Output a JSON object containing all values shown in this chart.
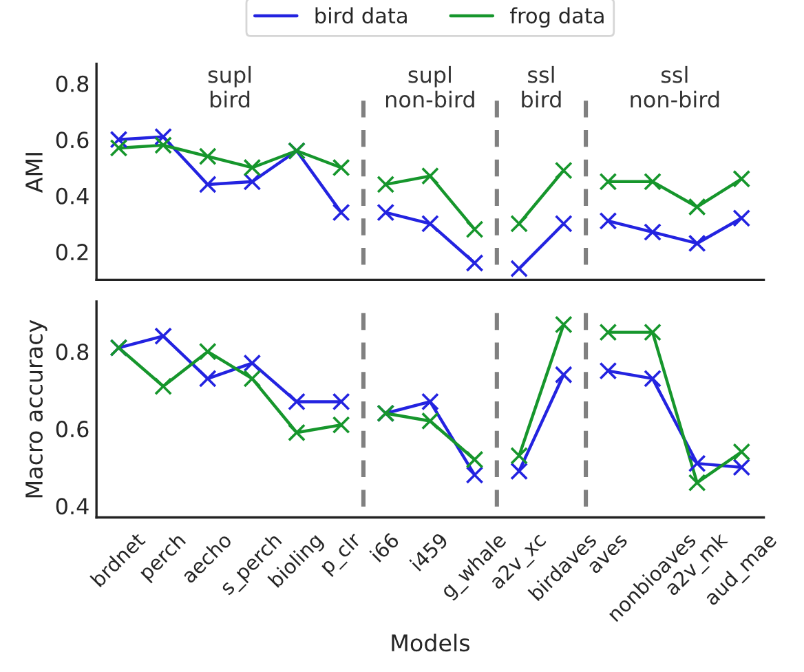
{
  "chart_data": [
    {
      "type": "line",
      "ylabel": "AMI",
      "categories": [
        null,
        null,
        null,
        null,
        null,
        null,
        null,
        null,
        null,
        null,
        null,
        null,
        null,
        null,
        null
      ],
      "series": [
        {
          "name": "bird data",
          "color": "#2323e0",
          "values": [
            0.6,
            0.61,
            0.44,
            0.45,
            0.56,
            0.34,
            0.34,
            0.3,
            0.16,
            0.14,
            0.3,
            0.31,
            0.27,
            0.23,
            0.32
          ]
        },
        {
          "name": "frog data",
          "color": "#16962c",
          "values": [
            0.57,
            0.58,
            0.54,
            0.5,
            0.56,
            0.5,
            0.44,
            0.47,
            0.28,
            0.3,
            0.49,
            0.45,
            0.45,
            0.36,
            0.46
          ]
        }
      ],
      "ylim": [
        0.1,
        0.87
      ],
      "yticks": [
        0.2,
        0.4,
        0.6,
        0.8
      ],
      "tick_labels": "y",
      "marker": "cross",
      "line_style": "solid",
      "grid": false,
      "legend": "top",
      "annotations": [
        "supl\nbird",
        "supl\nnon-bird",
        "ssl\nbird",
        "ssl\nnon-bird"
      ]
    },
    {
      "type": "line",
      "ylabel": "Macro accuracy",
      "xlabel": "Models",
      "categories": [
        "brdnet",
        "perch",
        "aecho",
        "s_perch",
        "bioling",
        "p_clr",
        "i66",
        "i459",
        "g_whale",
        "a2v_xc",
        "birdaves",
        "aves",
        "nonbioaves",
        "a2v_mk",
        "aud_mae"
      ],
      "series": [
        {
          "color": "#2323e0",
          "values": [
            0.81,
            0.84,
            0.73,
            0.77,
            0.67,
            0.67,
            0.64,
            0.67,
            0.48,
            0.49,
            0.74,
            0.75,
            0.73,
            0.51,
            0.5
          ]
        },
        {
          "color": "#16962c",
          "values": [
            0.81,
            0.71,
            0.8,
            0.73,
            0.59,
            0.61,
            0.64,
            0.62,
            0.52,
            0.53,
            0.87,
            0.85,
            0.85,
            0.46,
            0.54
          ]
        }
      ],
      "ylim": [
        0.37,
        0.93
      ],
      "yticks": [
        0.4,
        0.6,
        0.8
      ],
      "marker": "cross",
      "line_style": "solid",
      "grid": false,
      "legend": false
    }
  ]
}
